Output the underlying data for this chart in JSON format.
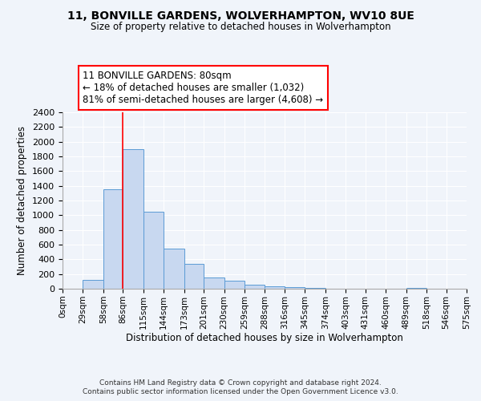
{
  "title": "11, BONVILLE GARDENS, WOLVERHAMPTON, WV10 8UE",
  "subtitle": "Size of property relative to detached houses in Wolverhampton",
  "xlabel": "Distribution of detached houses by size in Wolverhampton",
  "ylabel": "Number of detached properties",
  "bar_color": "#c8d8f0",
  "bar_edge_color": "#5b9bd5",
  "background_color": "#f0f4fa",
  "grid_color": "#ffffff",
  "bin_edges": [
    0,
    29,
    58,
    86,
    115,
    144,
    173,
    201,
    230,
    259,
    288,
    316,
    345,
    374,
    403,
    431,
    460,
    489,
    518,
    546,
    575
  ],
  "bin_labels": [
    "0sqm",
    "29sqm",
    "58sqm",
    "86sqm",
    "115sqm",
    "144sqm",
    "173sqm",
    "201sqm",
    "230sqm",
    "259sqm",
    "288sqm",
    "316sqm",
    "345sqm",
    "374sqm",
    "403sqm",
    "431sqm",
    "460sqm",
    "489sqm",
    "518sqm",
    "546sqm",
    "575sqm"
  ],
  "counts": [
    0,
    125,
    1350,
    1900,
    1050,
    550,
    340,
    155,
    105,
    60,
    30,
    20,
    10,
    5,
    5,
    2,
    2,
    15,
    5,
    0
  ],
  "property_size": 80,
  "vline_x": 86,
  "annotation_lines": [
    "11 BONVILLE GARDENS: 80sqm",
    "← 18% of detached houses are smaller (1,032)",
    "81% of semi-detached houses are larger (4,608) →"
  ],
  "ylim": [
    0,
    2400
  ],
  "yticks": [
    0,
    200,
    400,
    600,
    800,
    1000,
    1200,
    1400,
    1600,
    1800,
    2000,
    2200,
    2400
  ],
  "footer_line1": "Contains HM Land Registry data © Crown copyright and database right 2024.",
  "footer_line2": "Contains public sector information licensed under the Open Government Licence v3.0."
}
